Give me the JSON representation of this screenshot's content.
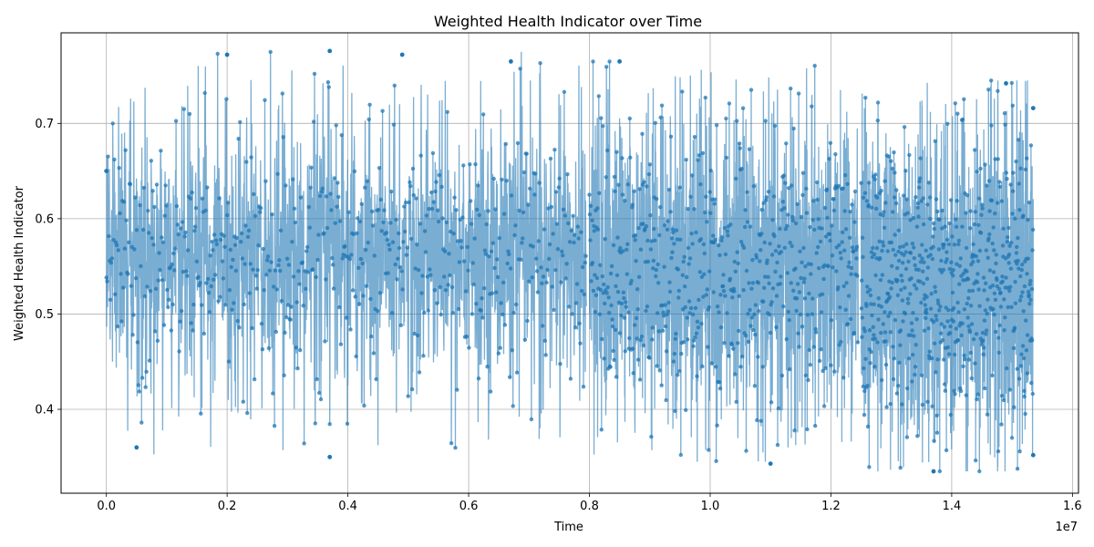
{
  "chart_data": {
    "type": "line",
    "title": "Weighted Health Indicator over Time",
    "xlabel": "Time",
    "ylabel": "Weighted Health Indicator",
    "x_offset_text": "1e7",
    "xlim": [
      -0.075,
      1.61
    ],
    "ylim": [
      0.312,
      0.795
    ],
    "x_range_of_data": [
      0.0,
      1.535
    ],
    "x_ticks": [
      0.0,
      0.2,
      0.4,
      0.6,
      0.8,
      1.0,
      1.2,
      1.4,
      1.6
    ],
    "x_tick_labels": [
      "0.0",
      "0.2",
      "0.4",
      "0.6",
      "0.8",
      "1.0",
      "1.2",
      "1.4",
      "1.6"
    ],
    "y_ticks": [
      0.4,
      0.5,
      0.6,
      0.7
    ],
    "y_tick_labels": [
      "0.4",
      "0.5",
      "0.6",
      "0.7"
    ],
    "grid": true,
    "series": [
      {
        "marker": "o",
        "color": "#1f77b4",
        "segments": [
          {
            "x_start": 0.0,
            "x_end": 0.795,
            "mean": 0.56,
            "spread": 0.085,
            "min": 0.35,
            "max": 0.775
          },
          {
            "x_start": 0.8,
            "x_end": 1.245,
            "mean": 0.545,
            "spread": 0.09,
            "min": 0.345,
            "max": 0.765
          },
          {
            "x_start": 1.25,
            "x_end": 1.535,
            "mean": 0.53,
            "spread": 0.09,
            "min": 0.335,
            "max": 0.745
          }
        ],
        "sample_points": [
          {
            "x": 0.0,
            "y": 0.65
          },
          {
            "x": 0.05,
            "y": 0.36
          },
          {
            "x": 0.2,
            "y": 0.772
          },
          {
            "x": 0.37,
            "y": 0.776
          },
          {
            "x": 0.37,
            "y": 0.35
          },
          {
            "x": 0.49,
            "y": 0.772
          },
          {
            "x": 0.67,
            "y": 0.765
          },
          {
            "x": 0.85,
            "y": 0.765
          },
          {
            "x": 1.1,
            "y": 0.343
          },
          {
            "x": 1.37,
            "y": 0.335
          },
          {
            "x": 1.49,
            "y": 0.742
          },
          {
            "x": 1.535,
            "y": 0.716
          },
          {
            "x": 1.535,
            "y": 0.352
          }
        ]
      }
    ]
  }
}
